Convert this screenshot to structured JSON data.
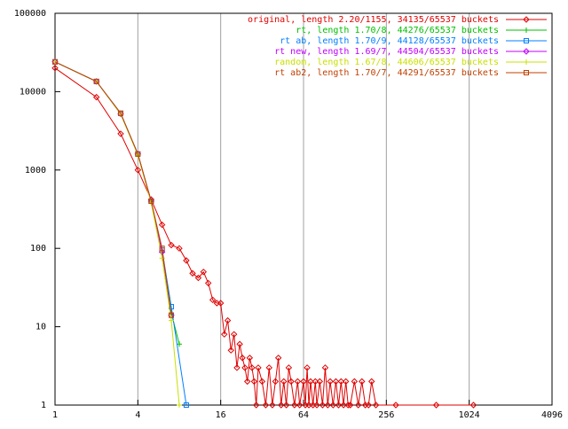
{
  "chart_data": {
    "type": "line",
    "xlim": [
      1,
      4096
    ],
    "ylim": [
      1,
      100000
    ],
    "xlog": true,
    "ylog": true,
    "xgrid": true,
    "xticks": [
      1,
      4,
      16,
      64,
      256,
      1024,
      4096
    ],
    "yticks": [
      1,
      10,
      100,
      1000,
      10000,
      100000
    ],
    "legend": "top-right",
    "series": [
      {
        "name": "original, length 2.20/1155, 34135/65537 buckets",
        "color": "#e00000",
        "x": [
          1,
          2,
          3,
          4,
          5,
          6,
          7,
          8,
          9,
          10,
          11,
          12,
          13,
          14,
          15,
          16,
          17,
          18,
          19,
          20,
          21,
          22,
          23,
          24,
          25,
          26,
          27,
          28,
          29,
          30,
          32,
          34,
          36,
          38,
          40,
          42,
          44,
          46,
          48,
          50,
          52,
          55,
          58,
          60,
          64,
          66,
          68,
          70,
          72,
          75,
          78,
          80,
          84,
          88,
          92,
          96,
          100,
          105,
          110,
          115,
          120,
          125,
          130,
          135,
          140,
          150,
          160,
          170,
          180,
          190,
          200,
          215,
          300,
          590,
          1100
        ],
        "values": [
          20000,
          8500,
          2900,
          1000,
          420,
          200,
          110,
          100,
          70,
          48,
          42,
          50,
          36,
          22,
          20,
          20,
          8,
          12,
          5,
          8,
          3,
          6,
          4,
          3,
          2,
          4,
          3,
          2,
          1,
          3,
          2,
          1,
          3,
          1,
          2,
          4,
          1,
          2,
          1,
          3,
          2,
          1,
          2,
          1,
          2,
          1,
          3,
          1,
          2,
          1,
          2,
          1,
          2,
          1,
          3,
          1,
          2,
          1,
          2,
          1,
          2,
          1,
          2,
          1,
          1,
          2,
          1,
          2,
          1,
          1,
          2,
          1,
          1,
          1,
          1
        ]
      },
      {
        "name": "rt, length 1.70/8, 44276/65537 buckets",
        "color": "#00c000",
        "x": [
          1,
          2,
          3,
          4,
          5,
          6,
          7,
          8
        ],
        "values": [
          24000,
          13500,
          5200,
          1600,
          400,
          90,
          15,
          6
        ]
      },
      {
        "name": "rt ab, length 1.70/9, 44128/65537 buckets",
        "color": "#0080ff",
        "x": [
          1,
          2,
          3,
          4,
          5,
          6,
          7,
          9
        ],
        "values": [
          24000,
          13500,
          5300,
          1600,
          400,
          95,
          18,
          1
        ]
      },
      {
        "name": "rt new, length 1.69/7, 44504/65537 buckets",
        "color": "#c000ff",
        "x": [
          1,
          2,
          3,
          4,
          5,
          6,
          7
        ],
        "values": [
          24000,
          13500,
          5200,
          1600,
          400,
          90,
          14
        ]
      },
      {
        "name": "random, length 1.67/8, 44606/65537 buckets",
        "color": "#c8e000",
        "x": [
          1,
          2,
          3,
          4,
          5,
          6,
          7,
          8
        ],
        "values": [
          24000,
          13500,
          5200,
          1550,
          380,
          75,
          12,
          1
        ]
      },
      {
        "name": "rt ab2, length 1.70/7, 44291/65537 buckets",
        "color": "#c04000",
        "x": [
          1,
          2,
          3,
          4,
          5,
          6,
          7
        ],
        "values": [
          24000,
          13500,
          5300,
          1600,
          400,
          100,
          14
        ]
      }
    ]
  }
}
